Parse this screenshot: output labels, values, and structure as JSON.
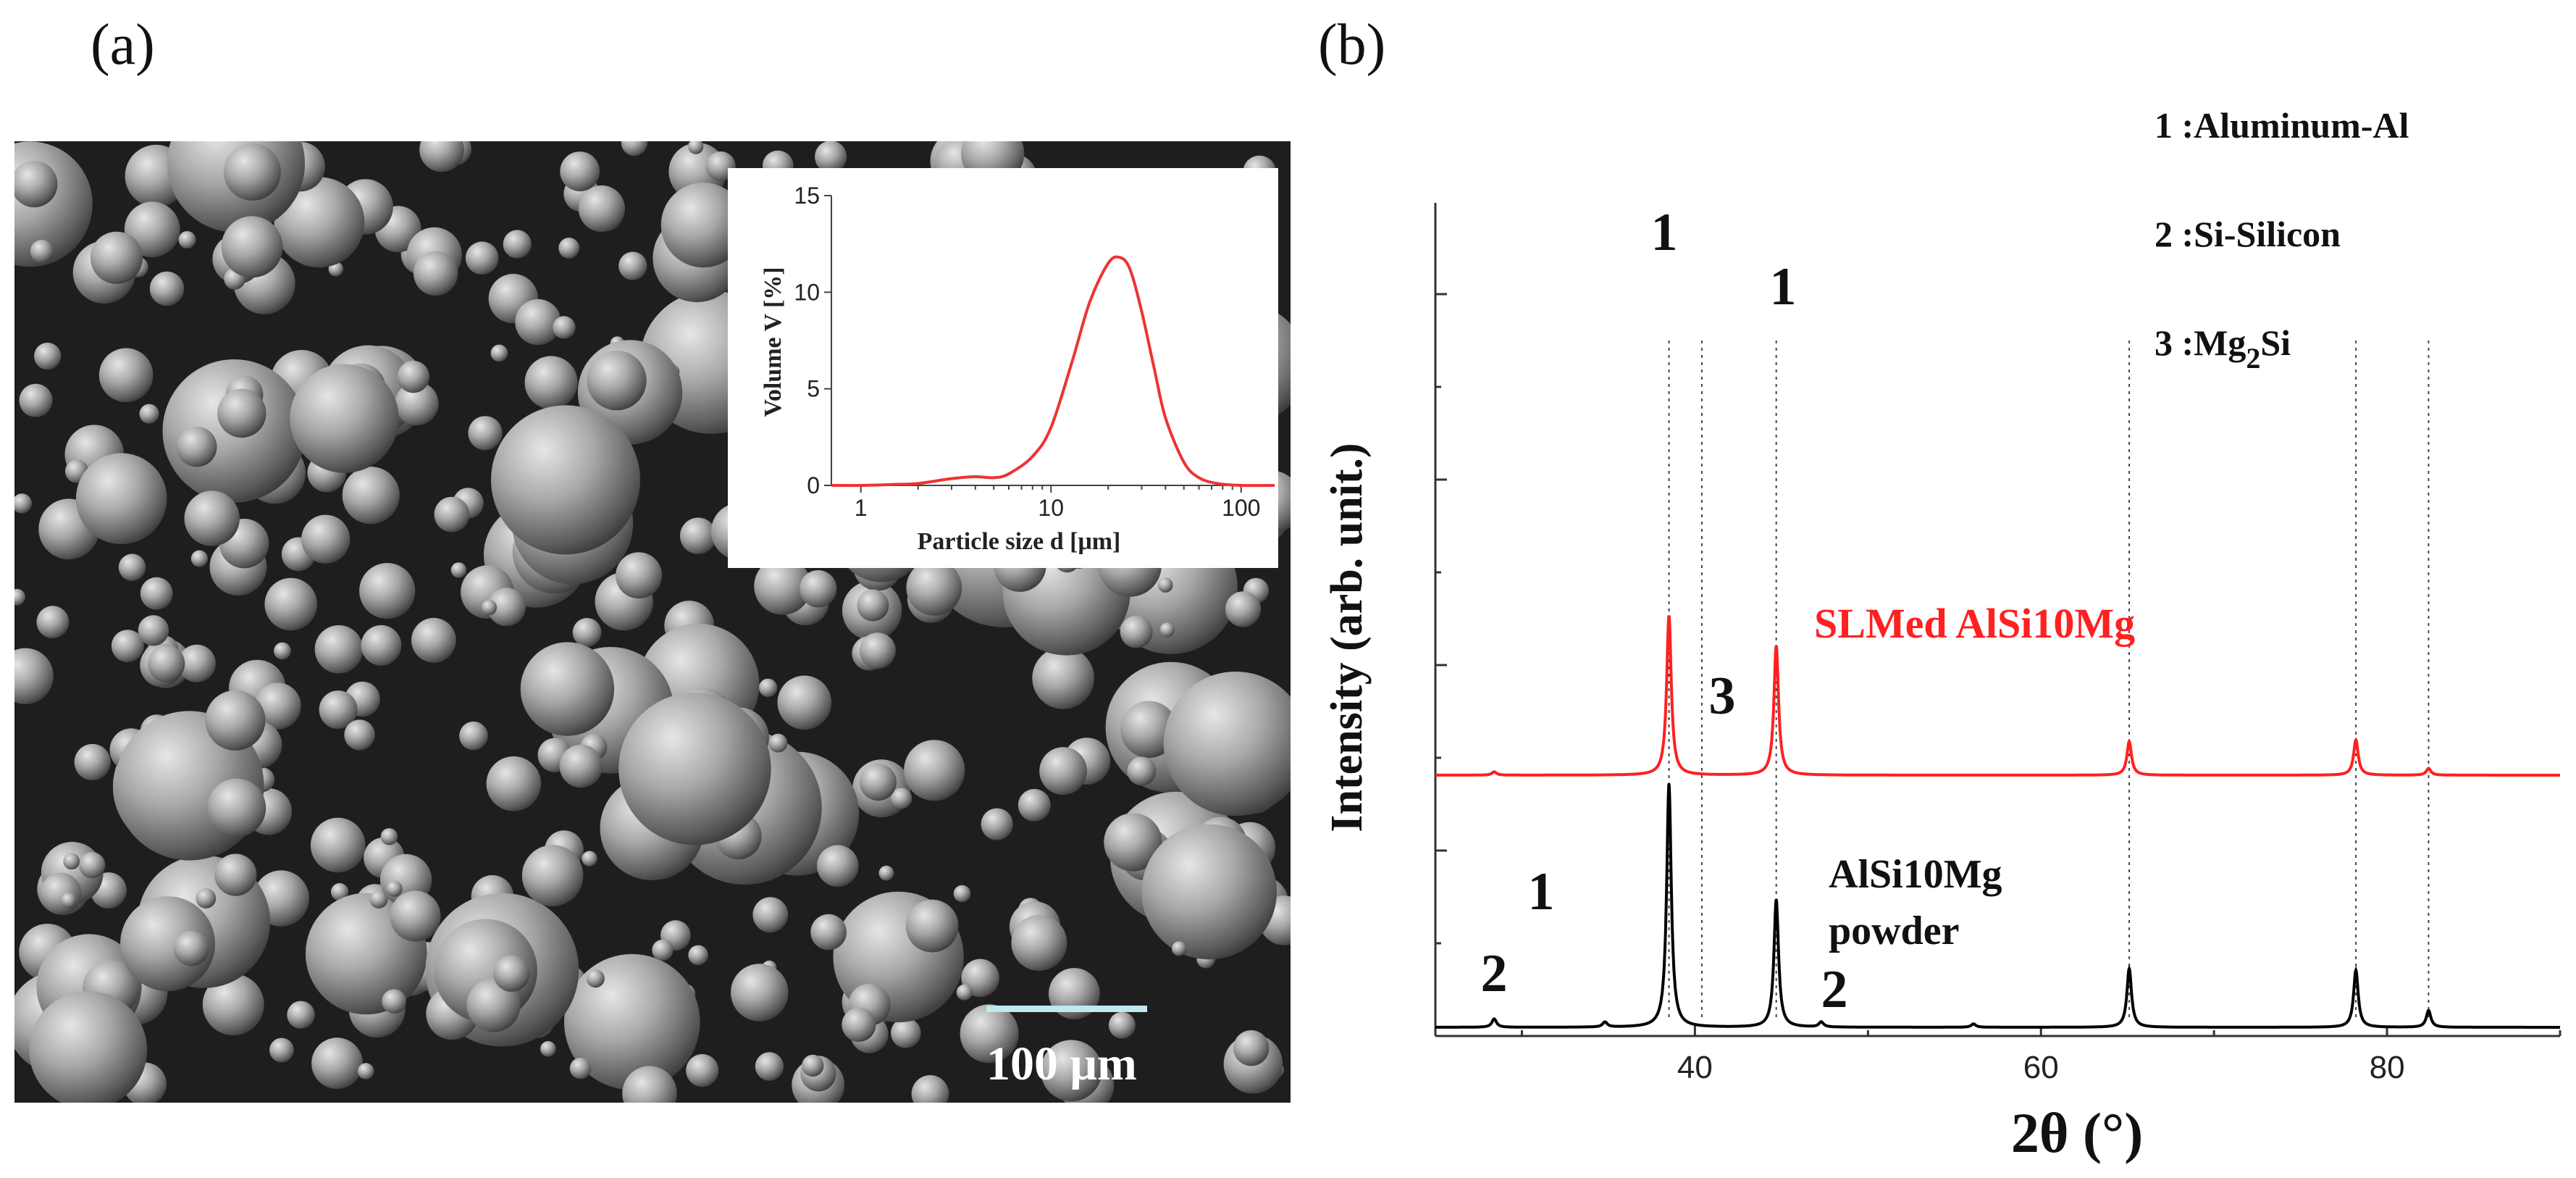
{
  "panel_a": {
    "label": "(a)",
    "scale_bar_label": "100 μm",
    "inset": {
      "xlabel": "Particle size d [μm]",
      "ylabel": "Volume V [%]",
      "x_ticks": [
        "1",
        "10",
        "100"
      ],
      "y_ticks": [
        "0",
        "5",
        "10",
        "15"
      ]
    }
  },
  "panel_b": {
    "label": "(b)",
    "legend": {
      "item1": "1 :Aluminum-Al",
      "item2": "2 :Si-Silicon",
      "item3_prefix": "3 :Mg",
      "item3_sub": "2",
      "item3_suffix": "Si"
    },
    "series_label_slm": "SLMed AlSi10Mg",
    "series_label_powder_line1": "AlSi10Mg",
    "series_label_powder_line2": "powder",
    "ylabel": "Intensity (arb. unit.)",
    "xlabel": "2θ (°)",
    "x_ticks": [
      "40",
      "60",
      "80"
    ],
    "peak_marks": [
      "1",
      "1",
      "3",
      "1",
      "2",
      "2"
    ]
  },
  "colors": {
    "slm": "#ff2020",
    "powder": "#000000",
    "inset_curve": "#ee3333",
    "sem_background": "#202020",
    "scale_bar": "#bfe8ef"
  },
  "chart_data": [
    {
      "type": "line",
      "panel": "a-inset",
      "x_scale": "log",
      "xlabel": "Particle size d [μm]",
      "ylabel": "Volume V [%]",
      "xlim": [
        0.7,
        150
      ],
      "ylim": [
        0,
        15
      ],
      "x_ticks": [
        1,
        10,
        100
      ],
      "y_ticks": [
        0,
        5,
        10,
        15
      ],
      "series": [
        {
          "x": [
            0.7,
            1.0,
            1.5,
            2.0,
            3.0,
            4.0,
            5.0,
            6.0,
            8.0,
            10,
            13,
            16,
            20,
            23,
            26,
            30,
            35,
            40,
            50,
            60,
            75,
            100,
            150
          ],
          "y": [
            0,
            0,
            0.05,
            0.1,
            0.35,
            0.45,
            0.4,
            0.6,
            1.5,
            3.0,
            6.5,
            9.5,
            11.5,
            11.8,
            11.2,
            9.0,
            6.0,
            3.5,
            1.2,
            0.4,
            0.1,
            0,
            0
          ]
        }
      ]
    },
    {
      "type": "line",
      "panel": "b",
      "xlabel": "2θ (°)",
      "ylabel": "Intensity (arb. unit.)",
      "xlim": [
        25,
        90
      ],
      "x_ticks": [
        40,
        60,
        80
      ],
      "series": [
        {
          "name": "SLMed AlSi10Mg",
          "baseline": 1.5,
          "peaks": [
            [
              28.4,
              0.02
            ],
            [
              38.5,
              0.95
            ],
            [
              44.7,
              0.77
            ],
            [
              65.1,
              0.2
            ],
            [
              78.2,
              0.21
            ],
            [
              82.4,
              0.04
            ]
          ]
        },
        {
          "name": "AlSi10Mg powder",
          "baseline": 0.0,
          "peaks": [
            [
              28.4,
              0.05
            ],
            [
              34.8,
              0.03
            ],
            [
              38.5,
              1.45
            ],
            [
              44.7,
              0.76
            ],
            [
              47.3,
              0.03
            ],
            [
              56.1,
              0.02
            ],
            [
              65.1,
              0.35
            ],
            [
              78.2,
              0.34
            ],
            [
              82.4,
              0.1
            ]
          ]
        }
      ],
      "reference_lines": [
        38.5,
        40.4,
        44.7,
        65.1,
        78.2,
        82.4
      ]
    }
  ]
}
